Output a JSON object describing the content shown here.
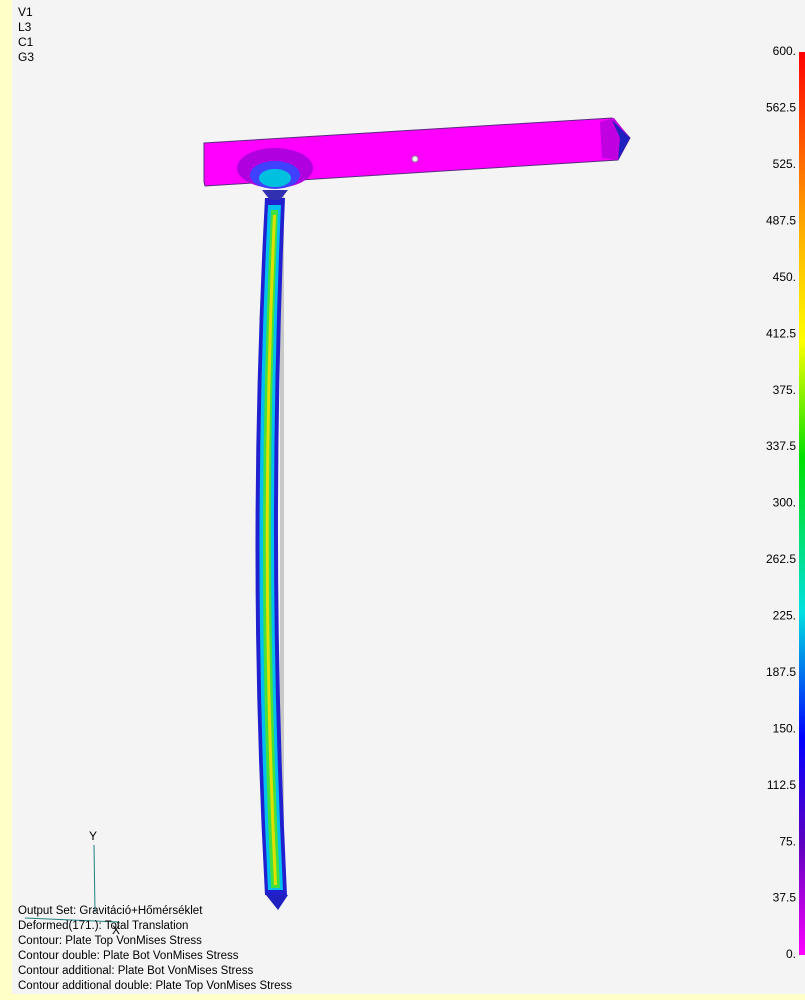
{
  "view_labels": [
    "V1",
    "L3",
    "C1",
    "G3"
  ],
  "legend": {
    "labels": [
      "600.",
      "562.5",
      "525.",
      "487.5",
      "450.",
      "412.5",
      "375.",
      "337.5",
      "300.",
      "262.5",
      "225.",
      "187.5",
      "150.",
      "112.5",
      "75.",
      "37.5",
      "0."
    ]
  },
  "triad": {
    "y": "Y",
    "x": "X"
  },
  "info_lines": [
    "Output Set: Gravitáció+Hőmérséklet",
    "Deformed(171.): Total Translation",
    "Contour: Plate Top VonMises Stress",
    "Contour double: Plate Bot VonMises Stress",
    "Contour additional: Plate Bot VonMises Stress",
    "Contour additional double: Plate Top VonMises Stress"
  ]
}
